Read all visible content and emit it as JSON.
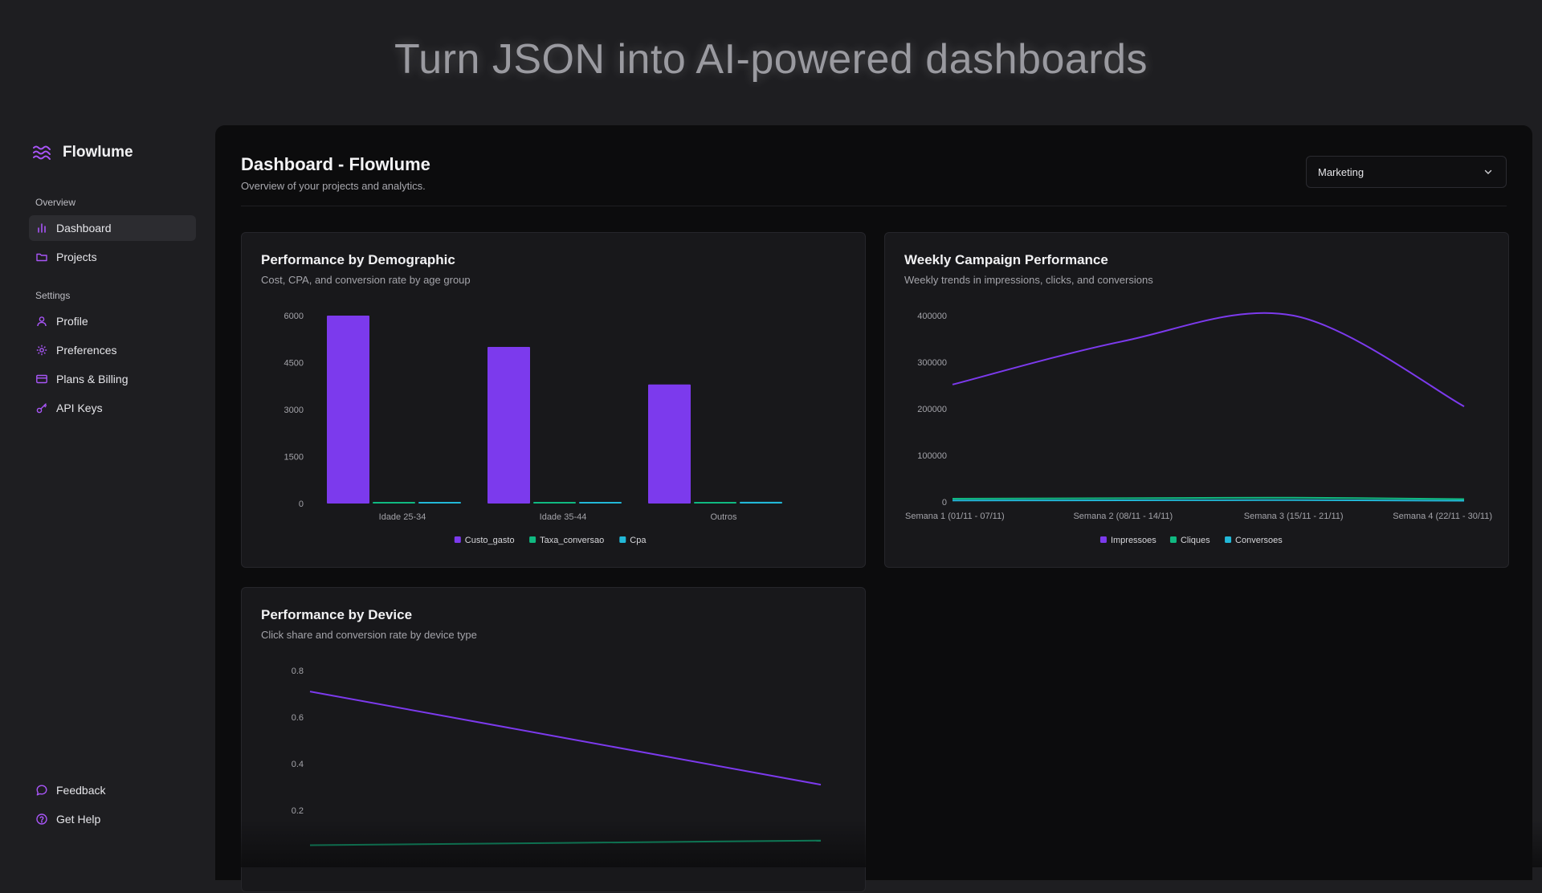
{
  "hero": {
    "title": "Turn JSON into AI-powered dashboards"
  },
  "sidebar": {
    "brand": "Flowlume",
    "sections": [
      {
        "label": "Overview"
      },
      {
        "label": "Settings"
      }
    ],
    "items": [
      {
        "label": "Dashboard",
        "icon": "bar-chart-icon",
        "active": true
      },
      {
        "label": "Projects",
        "icon": "folder-icon"
      },
      {
        "label": "Profile",
        "icon": "user-icon"
      },
      {
        "label": "Preferences",
        "icon": "gear-icon"
      },
      {
        "label": "Plans & Billing",
        "icon": "credit-card-icon"
      },
      {
        "label": "API Keys",
        "icon": "key-icon"
      }
    ],
    "footer": [
      {
        "label": "Feedback",
        "icon": "message-icon"
      },
      {
        "label": "Get Help",
        "icon": "help-icon"
      }
    ]
  },
  "header": {
    "title": "Dashboard - Flowlume",
    "subtitle": "Overview of your projects and analytics.",
    "select": {
      "value": "Marketing"
    }
  },
  "colors": {
    "purple": "#7c3aed",
    "green": "#10b981",
    "cyan": "#22b8d8",
    "accent_icon": "#a855f7"
  },
  "cards": [
    {
      "title": "Performance by Demographic",
      "subtitle": "Cost, CPA, and conversion rate by age group"
    },
    {
      "title": "Weekly Campaign Performance",
      "subtitle": "Weekly trends in impressions, clicks, and conversions"
    },
    {
      "title": "Performance by Device",
      "subtitle": "Click share and conversion rate by device type"
    }
  ],
  "chart_data": [
    {
      "type": "bar",
      "title": "Performance by Demographic",
      "categories": [
        "Idade 25-34",
        "Idade 35-44",
        "Outros"
      ],
      "series": [
        {
          "name": "Custo_gasto",
          "values": [
            6000,
            5000,
            3800
          ],
          "color": "#7c3aed"
        },
        {
          "name": "Taxa_conversao",
          "values": [
            4,
            4,
            4
          ],
          "color": "#10b981"
        },
        {
          "name": "Cpa",
          "values": [
            45,
            50,
            55
          ],
          "color": "#22b8d8"
        }
      ],
      "ylim": [
        0,
        6000
      ],
      "yticks": [
        "0",
        "1500",
        "3000",
        "4500",
        "6000"
      ],
      "legend": "bottom"
    },
    {
      "type": "line",
      "title": "Weekly Campaign Performance",
      "categories": [
        "Semana 1 (01/11 - 07/11)",
        "Semana 2 (08/11 - 14/11)",
        "Semana 3 (15/11 - 21/11)",
        "Semana 4 (22/11 - 30/11)"
      ],
      "series": [
        {
          "name": "Impressoes",
          "values": [
            252000,
            345000,
            400000,
            205000
          ],
          "color": "#7c3aed"
        },
        {
          "name": "Cliques",
          "values": [
            7000,
            8000,
            9000,
            6000
          ],
          "color": "#10b981"
        },
        {
          "name": "Conversoes",
          "values": [
            3000,
            3500,
            3800,
            2500
          ],
          "color": "#22b8d8"
        }
      ],
      "ylim": [
        0,
        400000
      ],
      "yticks": [
        "0",
        "100000",
        "200000",
        "300000",
        "400000"
      ],
      "legend": "bottom"
    },
    {
      "type": "line",
      "title": "Performance by Device",
      "series": [
        {
          "name": "",
          "values": [
            0.71,
            0.31
          ],
          "color": "#7c3aed"
        },
        {
          "name": "",
          "values": [
            0.05,
            0.07
          ],
          "color": "#10b981"
        }
      ],
      "ylim": [
        0,
        0.8
      ],
      "yticks": [
        "0.2",
        "0.4",
        "0.6",
        "0.8"
      ]
    }
  ]
}
